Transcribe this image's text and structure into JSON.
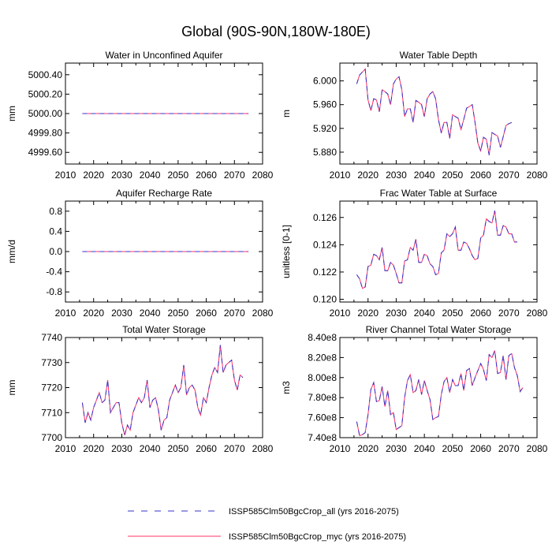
{
  "title": "Global (90S-90N,180W-180E)",
  "colors": {
    "series_all": "#3333cc",
    "series_myc": "#ff3366"
  },
  "legend": {
    "entries": [
      {
        "label": "ISSP585Clm50BgcCrop_all (yrs 2016-2075)",
        "style": "dashed",
        "color": "#3333cc"
      },
      {
        "label": "ISSP585Clm50BgcCrop_myc (yrs 2016-2075)",
        "style": "solid",
        "color": "#ff3366"
      }
    ]
  },
  "chart_data": [
    {
      "type": "line",
      "title": "Water in Unconfined Aquifer",
      "ylabel": "mm",
      "xlim": [
        2010,
        2080
      ],
      "ylim": [
        4999.48,
        5000.52
      ],
      "xticks": [
        "2010",
        "2020",
        "2030",
        "2040",
        "2050",
        "2060",
        "2070",
        "2080"
      ],
      "yticks": [
        {
          "v": 5000.4,
          "label": "5000.40"
        },
        {
          "v": 5000.2,
          "label": "5000.20"
        },
        {
          "v": 5000.0,
          "label": "5000.00"
        },
        {
          "v": 4999.8,
          "label": "4999.80"
        },
        {
          "v": 4999.6,
          "label": "4999.60"
        }
      ],
      "x_start": 2016,
      "x_end": 2075,
      "values": [
        5000,
        5000,
        5000,
        5000,
        5000,
        5000,
        5000,
        5000,
        5000,
        5000,
        5000,
        5000,
        5000,
        5000,
        5000,
        5000,
        5000,
        5000,
        5000,
        5000,
        5000,
        5000,
        5000,
        5000,
        5000,
        5000,
        5000,
        5000,
        5000,
        5000,
        5000,
        5000,
        5000,
        5000,
        5000,
        5000,
        5000,
        5000,
        5000,
        5000,
        5000,
        5000,
        5000,
        5000,
        5000,
        5000,
        5000,
        5000,
        5000,
        5000,
        5000,
        5000,
        5000,
        5000,
        5000,
        5000,
        5000,
        5000,
        5000,
        5000
      ]
    },
    {
      "type": "line",
      "title": "Water Table Depth",
      "ylabel": "m",
      "xlim": [
        2010,
        2080
      ],
      "ylim": [
        5.86,
        6.03
      ],
      "xticks": [
        "2010",
        "2020",
        "2030",
        "2040",
        "2050",
        "2060",
        "2070",
        "2080"
      ],
      "yticks": [
        {
          "v": 6.0,
          "label": "6.000"
        },
        {
          "v": 5.96,
          "label": "5.960"
        },
        {
          "v": 5.92,
          "label": "5.920"
        },
        {
          "v": 5.88,
          "label": "5.880"
        }
      ],
      "x_start": 2016,
      "x_end": 2075,
      "values": [
        5.995,
        6.01,
        6.015,
        6.02,
        5.968,
        5.95,
        5.97,
        5.968,
        5.948,
        5.985,
        5.982,
        5.978,
        5.96,
        5.995,
        6.003,
        6.007,
        5.985,
        5.94,
        5.953,
        5.953,
        5.93,
        5.967,
        5.964,
        5.96,
        5.94,
        5.97,
        5.978,
        5.982,
        5.97,
        5.935,
        5.912,
        5.93,
        5.93,
        5.903,
        5.943,
        5.94,
        5.937,
        5.918,
        5.935,
        5.954,
        5.957,
        5.96,
        5.93,
        5.895,
        5.882,
        5.905,
        5.902,
        5.875,
        5.913,
        5.91,
        5.907,
        5.888,
        5.906,
        5.925,
        5.928,
        5.93,
        null,
        null,
        null,
        null
      ]
    },
    {
      "type": "line",
      "title": "Aquifer Recharge Rate",
      "ylabel": "mm/d",
      "xlim": [
        2010,
        2080
      ],
      "ylim": [
        -1.0,
        1.0
      ],
      "xticks": [
        "2010",
        "2020",
        "2030",
        "2040",
        "2050",
        "2060",
        "2070",
        "2080"
      ],
      "yticks": [
        {
          "v": 0.8,
          "label": "0.8"
        },
        {
          "v": 0.4,
          "label": "0.4"
        },
        {
          "v": 0.0,
          "label": "0.0"
        },
        {
          "v": -0.4,
          "label": "-0.4"
        },
        {
          "v": -0.8,
          "label": "-0.8"
        }
      ],
      "x_start": 2016,
      "x_end": 2075,
      "values": [
        0,
        0,
        0,
        0,
        0,
        0,
        0,
        0,
        0,
        0,
        0,
        0,
        0,
        0,
        0,
        0,
        0,
        0,
        0,
        0,
        0,
        0,
        0,
        0,
        0,
        0,
        0,
        0,
        0,
        0,
        0,
        0,
        0,
        0,
        0,
        0,
        0,
        0,
        0,
        0,
        0,
        0,
        0,
        0,
        0,
        0,
        0,
        0,
        0,
        0,
        0,
        0,
        0,
        0,
        0,
        0,
        0,
        0,
        0,
        0
      ]
    },
    {
      "type": "line",
      "title": "Frac Water Table at Surface",
      "ylabel": "unitless [0-1]",
      "xlim": [
        2010,
        2080
      ],
      "ylim": [
        0.1198,
        0.1272
      ],
      "xticks": [
        "2010",
        "2020",
        "2030",
        "2040",
        "2050",
        "2060",
        "2070",
        "2080"
      ],
      "yticks": [
        {
          "v": 0.126,
          "label": "0.126"
        },
        {
          "v": 0.124,
          "label": "0.124"
        },
        {
          "v": 0.122,
          "label": "0.122"
        },
        {
          "v": 0.12,
          "label": "0.120"
        }
      ],
      "x_start": 2016,
      "x_end": 2075,
      "values": [
        0.1218,
        0.1215,
        0.1208,
        0.1209,
        0.1224,
        0.1225,
        0.1233,
        0.1232,
        0.1229,
        0.1238,
        0.1221,
        0.1221,
        0.1227,
        0.1225,
        0.1219,
        0.1212,
        0.1212,
        0.1228,
        0.1229,
        0.1238,
        0.1236,
        0.1244,
        0.1227,
        0.1227,
        0.1233,
        0.1232,
        0.1226,
        0.1224,
        0.1218,
        0.1219,
        0.1234,
        0.1236,
        0.1248,
        0.1246,
        0.1248,
        0.1253,
        0.1236,
        0.1236,
        0.1242,
        0.1241,
        0.1237,
        0.1232,
        0.1229,
        0.123,
        0.1245,
        0.1247,
        0.1259,
        0.1257,
        0.1256,
        0.1265,
        0.1247,
        0.1247,
        0.1254,
        0.1253,
        0.1248,
        0.1248,
        0.1242,
        0.1242,
        null,
        null
      ]
    },
    {
      "type": "line",
      "title": "Total Water Storage",
      "ylabel": "mm",
      "xlim": [
        2010,
        2080
      ],
      "ylim": [
        7700,
        7740
      ],
      "xticks": [
        "2010",
        "2020",
        "2030",
        "2040",
        "2050",
        "2060",
        "2070",
        "2080"
      ],
      "yticks": [
        {
          "v": 7740,
          "label": "7740"
        },
        {
          "v": 7730,
          "label": "7730"
        },
        {
          "v": 7720,
          "label": "7720"
        },
        {
          "v": 7710,
          "label": "7710"
        },
        {
          "v": 7700,
          "label": "7700"
        }
      ],
      "x_start": 2016,
      "x_end": 2075,
      "values": [
        7714,
        7706,
        7710,
        7707,
        7712,
        7715,
        7718,
        7714,
        7715,
        7723,
        7710,
        7712,
        7714,
        7714,
        7706,
        7701,
        7705,
        7703,
        7710,
        7713,
        7716,
        7714,
        7716,
        7723,
        7712,
        7715,
        7716,
        7711,
        7703,
        7707,
        7708,
        7715,
        7718,
        7721,
        7718,
        7720,
        7729,
        7717,
        7720,
        7721,
        7719,
        7712,
        7709,
        7716,
        7714,
        7720,
        7725,
        7728,
        7726,
        7737,
        7726,
        7729,
        7730,
        7731,
        7723,
        7719,
        7725,
        7724,
        null,
        null
      ]
    },
    {
      "type": "line",
      "title": "River Channel Total Water Storage",
      "ylabel": "m3",
      "xlim": [
        2010,
        2080
      ],
      "ylim": [
        740000000.0,
        840000000.0
      ],
      "xticks": [
        "2010",
        "2020",
        "2030",
        "2040",
        "2050",
        "2060",
        "2070",
        "2080"
      ],
      "yticks": [
        {
          "v": 840000000.0,
          "label": "8.40e8"
        },
        {
          "v": 820000000.0,
          "label": "8.20e8"
        },
        {
          "v": 800000000.0,
          "label": "8.00e8"
        },
        {
          "v": 780000000.0,
          "label": "7.80e8"
        },
        {
          "v": 760000000.0,
          "label": "7.60e8"
        },
        {
          "v": 740000000.0,
          "label": "7.40e8"
        }
      ],
      "x_start": 2016,
      "x_end": 2075,
      "values": [
        756000000.0,
        742000000.0,
        743000000.0,
        745000000.0,
        763000000.0,
        788000000.0,
        795000000.0,
        776000000.0,
        777000000.0,
        791000000.0,
        771000000.0,
        787000000.0,
        763000000.0,
        765000000.0,
        748000000.0,
        750000000.0,
        752000000.0,
        780000000.0,
        797000000.0,
        803000000.0,
        785000000.0,
        787000000.0,
        798000000.0,
        783000000.0,
        797000000.0,
        787000000.0,
        778000000.0,
        758000000.0,
        760000000.0,
        761000000.0,
        783000000.0,
        796000000.0,
        800000000.0,
        785000000.0,
        798000000.0,
        792000000.0,
        792000000.0,
        804000000.0,
        787000000.0,
        807000000.0,
        809000000.0,
        792000000.0,
        800000000.0,
        807000000.0,
        814000000.0,
        808000000.0,
        797000000.0,
        823000000.0,
        820000000.0,
        827000000.0,
        804000000.0,
        805000000.0,
        822000000.0,
        798000000.0,
        822000000.0,
        824000000.0,
        810000000.0,
        802000000.0,
        786000000.0,
        790000000.0
      ]
    }
  ]
}
